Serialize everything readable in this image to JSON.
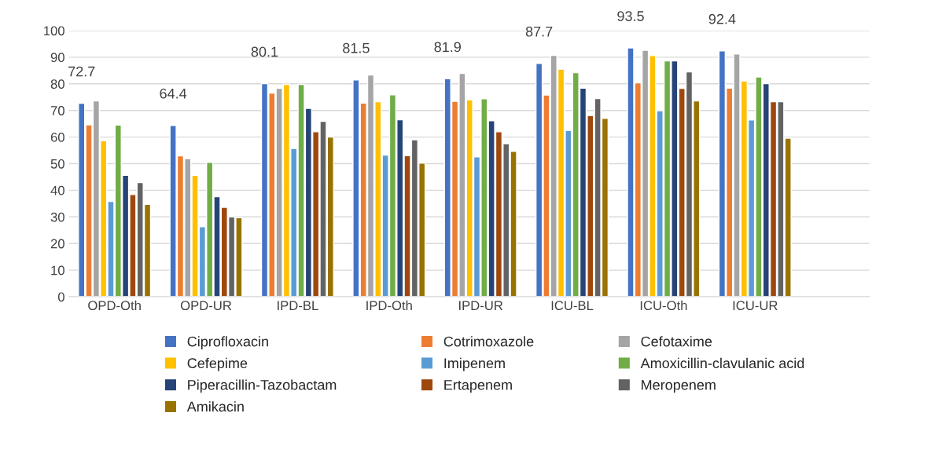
{
  "chart_data": {
    "type": "bar",
    "categories": [
      "OPD-Oth",
      "OPD-UR",
      "IPD-BL",
      "IPD-Oth",
      "IPD-UR",
      "ICU-BL",
      "ICU-Oth",
      "ICU-UR"
    ],
    "series": [
      {
        "name": "Ciprofloxacin",
        "color": "#4472c4",
        "values": [
          72.7,
          64.4,
          80.1,
          81.5,
          81.9,
          87.7,
          93.5,
          92.4
        ],
        "value_labels": [
          "72.7",
          "64.4",
          "80.1",
          "81.5",
          "81.9",
          "87.7",
          "93.5",
          "92.4"
        ]
      },
      {
        "name": "Cotrimoxazole",
        "color": "#ed7d31",
        "values": [
          64.6,
          52.9,
          76.5,
          72.8,
          73.4,
          75.8,
          80.4,
          78.4
        ]
      },
      {
        "name": "Cefotaxime",
        "color": "#a5a5a5",
        "values": [
          73.6,
          51.9,
          78.3,
          83.3,
          83.9,
          90.7,
          92.6,
          91.2
        ]
      },
      {
        "name": "Cefepime",
        "color": "#ffc000",
        "values": [
          58.6,
          45.6,
          79.8,
          73.3,
          74.0,
          85.5,
          90.6,
          81.1
        ]
      },
      {
        "name": "Imipenem",
        "color": "#5b9bd5",
        "values": [
          35.8,
          26.3,
          55.7,
          53.2,
          52.6,
          62.5,
          69.9,
          66.4
        ]
      },
      {
        "name": "Amoxicillin-clavulanic acid",
        "color": "#70ad47",
        "values": [
          64.5,
          50.5,
          79.8,
          75.9,
          74.4,
          84.2,
          88.6,
          82.6
        ]
      },
      {
        "name": "Piperacillin-Tazobactam",
        "color": "#264478",
        "values": [
          45.6,
          37.6,
          70.8,
          66.5,
          66.1,
          78.4,
          88.6,
          80.1
        ]
      },
      {
        "name": "Ertapenem",
        "color": "#9e480e",
        "values": [
          38.4,
          33.6,
          62.0,
          53.0,
          62.0,
          68.1,
          78.3,
          73.3
        ]
      },
      {
        "name": "Meropenem",
        "color": "#636363",
        "values": [
          42.9,
          30.0,
          65.9,
          59.0,
          57.5,
          74.5,
          84.5,
          73.3
        ]
      },
      {
        "name": "Amikacin",
        "color": "#997300",
        "values": [
          34.7,
          29.7,
          60.0,
          50.2,
          54.6,
          67.0,
          73.6,
          59.6
        ]
      }
    ],
    "ylim": [
      0,
      100
    ],
    "yticks": [
      0,
      10,
      20,
      30,
      40,
      50,
      60,
      70,
      80,
      90,
      100
    ],
    "grid": "y",
    "legend": "bottom"
  }
}
